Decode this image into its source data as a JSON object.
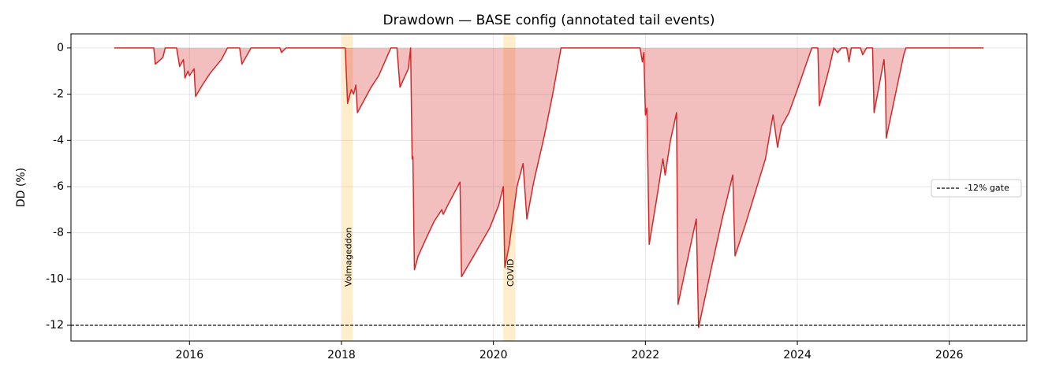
{
  "chart_data": {
    "type": "area",
    "title": "Drawdown — BASE config (annotated tail events)",
    "ylabel": "DD (%)",
    "xlim": [
      2014.44,
      2027.02
    ],
    "xticks": [
      2016,
      2018,
      2020,
      2022,
      2024,
      2026
    ],
    "ylim": [
      -12.68,
      0.61
    ],
    "yticks": [
      0,
      -2,
      -4,
      -6,
      -8,
      -10,
      -12
    ],
    "grid": true,
    "legend_position": "right",
    "series": [
      {
        "color": "#d62728",
        "x": [
          2015.01,
          2015.53,
          2015.55,
          2015.62,
          2015.65,
          2015.68,
          2015.83,
          2015.87,
          2015.92,
          2015.94,
          2015.98,
          2016.0,
          2016.06,
          2016.08,
          2016.17,
          2016.27,
          2016.42,
          2016.5,
          2016.66,
          2016.69,
          2016.81,
          2017.19,
          2017.21,
          2017.27,
          2018.05,
          2018.08,
          2018.13,
          2018.16,
          2018.19,
          2018.21,
          2018.39,
          2018.49,
          2018.65,
          2018.73,
          2018.77,
          2018.88,
          2018.91,
          2018.93,
          2018.94,
          2018.96,
          2019.01,
          2019.12,
          2019.22,
          2019.32,
          2019.34,
          2019.4,
          2019.56,
          2019.58,
          2019.74,
          2019.95,
          2020.07,
          2020.13,
          2020.15,
          2020.21,
          2020.31,
          2020.39,
          2020.44,
          2020.53,
          2020.67,
          2020.78,
          2020.89,
          2021.93,
          2021.96,
          2021.98,
          2022.0,
          2022.02,
          2022.05,
          2022.15,
          2022.23,
          2022.26,
          2022.33,
          2022.41,
          2022.43,
          2022.5,
          2022.63,
          2022.67,
          2022.7,
          2022.85,
          2023.01,
          2023.15,
          2023.18,
          2023.32,
          2023.58,
          2023.68,
          2023.74,
          2023.79,
          2023.89,
          2024.0,
          2024.19,
          2024.27,
          2024.29,
          2024.41,
          2024.48,
          2024.53,
          2024.58,
          2024.65,
          2024.68,
          2024.71,
          2024.83,
          2024.86,
          2024.91,
          2024.99,
          2025.01,
          2025.14,
          2025.16,
          2025.17,
          2025.4,
          2025.43,
          2026.45
        ],
        "values": [
          0,
          0,
          -0.7,
          -0.5,
          -0.4,
          0,
          0,
          -0.8,
          -0.5,
          -1.3,
          -1.0,
          -1.2,
          -0.9,
          -2.1,
          -1.6,
          -1.1,
          -0.5,
          0,
          0,
          -0.7,
          0,
          0,
          -0.2,
          0,
          0,
          -2.4,
          -1.8,
          -2.0,
          -1.6,
          -2.8,
          -1.7,
          -1.2,
          0,
          0,
          -1.7,
          -0.9,
          0,
          -4.8,
          -4.7,
          -9.6,
          -9.0,
          -8.2,
          -7.5,
          -7.0,
          -7.2,
          -6.8,
          -5.8,
          -9.9,
          -9.0,
          -7.8,
          -6.8,
          -6.0,
          -9.5,
          -8.5,
          -6.0,
          -5.0,
          -7.4,
          -5.8,
          -3.8,
          -2.0,
          0,
          0,
          -0.6,
          -0.2,
          -2.9,
          -2.6,
          -8.5,
          -6.5,
          -4.8,
          -5.5,
          -4.0,
          -2.8,
          -11.1,
          -10.0,
          -8.0,
          -7.4,
          -12.1,
          -9.8,
          -7.4,
          -5.5,
          -9.0,
          -7.6,
          -4.8,
          -2.9,
          -4.3,
          -3.4,
          -2.8,
          -1.8,
          0,
          0,
          -2.5,
          -1.0,
          0,
          -0.2,
          0,
          0,
          -0.6,
          0,
          0,
          -0.3,
          0,
          0,
          -2.8,
          -0.5,
          -1.5,
          -3.9,
          -0.3,
          0,
          0
        ]
      }
    ],
    "reference_line": {
      "value": -12,
      "label": "-12% gate",
      "color": "#000000"
    },
    "spans": [
      {
        "label": "Volmageddon",
        "x0": 2018.01,
        "x1": 2018.15,
        "color": "#ffa500"
      },
      {
        "label": "COVID",
        "x0": 2020.13,
        "x1": 2020.29,
        "color": "#ffa500"
      }
    ]
  }
}
